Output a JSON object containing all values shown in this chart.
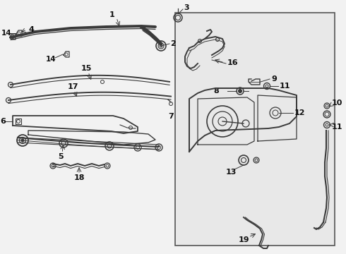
{
  "bg_color": "#f2f2f2",
  "box_bg": "#e8e8e8",
  "line_color": "#3a3a3a",
  "text_color": "#111111",
  "fig_width": 4.9,
  "fig_height": 3.6,
  "dpi": 100
}
